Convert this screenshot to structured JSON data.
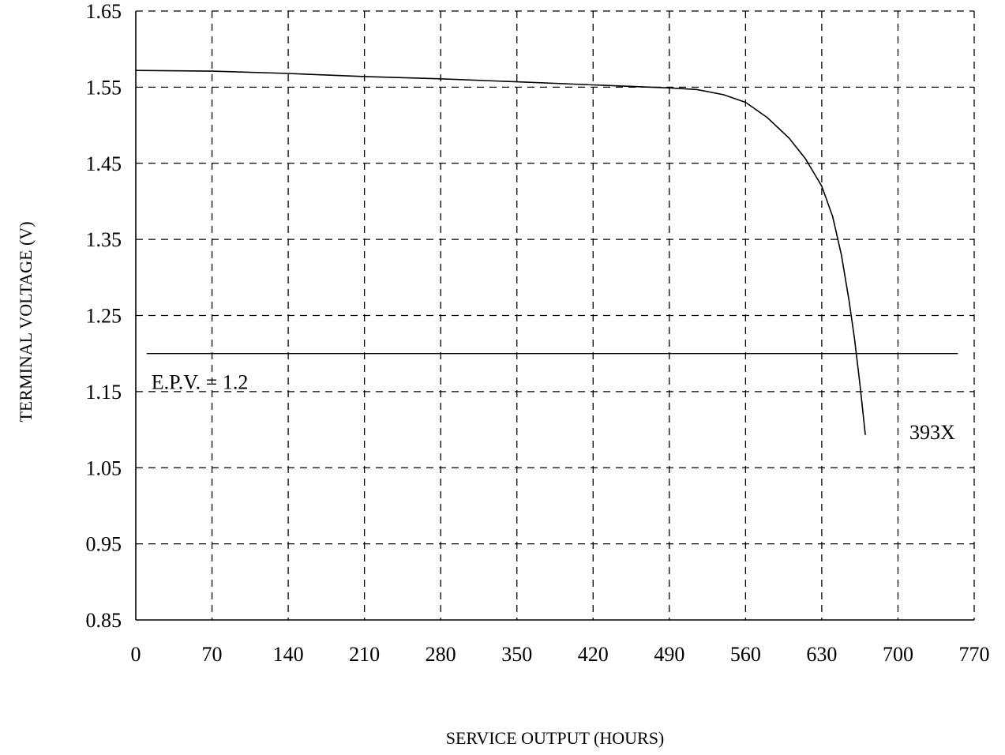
{
  "chart_data": {
    "type": "line",
    "xlabel": "SERVICE OUTPUT (HOURS)",
    "ylabel": "TERMINAL VOLTAGE (V)",
    "xlim": [
      0,
      770
    ],
    "ylim": [
      0.85,
      1.65
    ],
    "x_ticks": [
      0,
      70,
      140,
      210,
      280,
      350,
      420,
      490,
      560,
      630,
      700,
      770
    ],
    "x_tick_labels": [
      "0",
      "70",
      "140",
      "210",
      "280",
      "350",
      "420",
      "490",
      "560",
      "630",
      "700",
      "770"
    ],
    "y_ticks": [
      0.85,
      0.95,
      1.05,
      1.15,
      1.25,
      1.35,
      1.45,
      1.55,
      1.65
    ],
    "y_tick_labels": [
      "0.85",
      "0.95",
      "1.05",
      "1.15",
      "1.25",
      "1.35",
      "1.45",
      "1.55",
      "1.65"
    ],
    "grid": true,
    "series": [
      {
        "name": "393X",
        "x": [
          0,
          70,
          140,
          210,
          280,
          350,
          420,
          490,
          515,
          540,
          560,
          580,
          600,
          615,
          630,
          640,
          648,
          655,
          660,
          665,
          670
        ],
        "y": [
          1.572,
          1.571,
          1.568,
          1.564,
          1.561,
          1.557,
          1.553,
          1.549,
          1.547,
          1.54,
          1.53,
          1.51,
          1.483,
          1.456,
          1.42,
          1.38,
          1.33,
          1.27,
          1.22,
          1.16,
          1.093
        ]
      }
    ],
    "reference_line": {
      "label": "E.P.V. = 1.2",
      "y": 1.2,
      "x_range": [
        10,
        755
      ]
    },
    "annotations": [
      "E.P.V. = 1.2",
      "393X"
    ]
  }
}
